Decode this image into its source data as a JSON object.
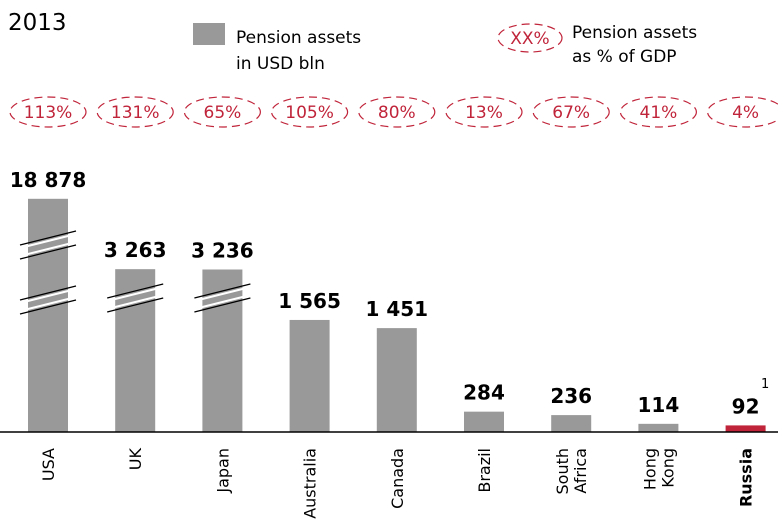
{
  "chart_data": {
    "type": "bar",
    "title": "2013",
    "categories": [
      "USA",
      "UK",
      "Japan",
      "Australia",
      "Canada",
      "Brazil",
      "South Africa",
      "Hong Kong",
      "Russia"
    ],
    "series": [
      {
        "name": "Pension assets in USD bln",
        "color": "#999999",
        "colors": [
          "#999999",
          "#999999",
          "#999999",
          "#999999",
          "#999999",
          "#999999",
          "#999999",
          "#999999",
          "#c0243a"
        ],
        "values": [
          18878,
          3263,
          3236,
          1565,
          1451,
          284,
          236,
          114,
          92
        ],
        "value_labels": [
          "18 878",
          "3 263",
          "3 236",
          "1 565",
          "1 451",
          "284",
          "236",
          "114",
          "92"
        ]
      },
      {
        "name": "Pension assets as % of GDP",
        "color": "#c0243a",
        "values": [
          113,
          131,
          65,
          105,
          80,
          13,
          67,
          41,
          4
        ],
        "value_labels": [
          "113%",
          "131%",
          "65%",
          "105%",
          "80%",
          "13%",
          "67%",
          "41%",
          "4%"
        ]
      }
    ],
    "legend_sample": "XX%",
    "footnote_mark": "1"
  }
}
